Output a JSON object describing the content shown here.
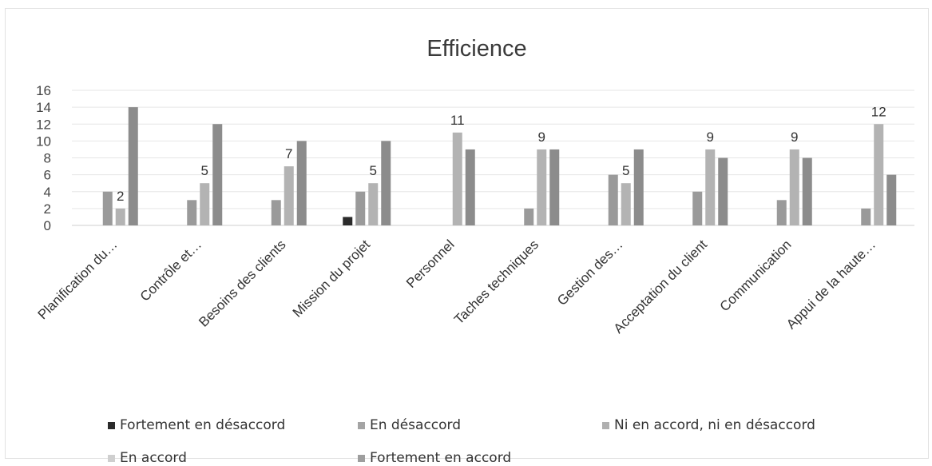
{
  "chart_data": {
    "type": "bar",
    "title": "Efficience",
    "categories": [
      "Planification du…",
      "Contrôle et…",
      "Besoins des clients",
      "Mission du projet",
      "Personnel",
      "Taches techniques",
      "Gestion des…",
      "Acceptation du client",
      "Communication",
      "Appui de la haute…"
    ],
    "series": [
      {
        "name": "Fortement en désaccord",
        "color": "#2b2b2b",
        "values": [
          0,
          0,
          0,
          1,
          0,
          0,
          0,
          0,
          0,
          0
        ]
      },
      {
        "name": "En désaccord",
        "color": "#9a9a9a",
        "values": [
          4,
          3,
          3,
          4,
          0,
          2,
          6,
          4,
          3,
          2
        ]
      },
      {
        "name": "Ni en accord, ni en désaccord",
        "color": "#b3b3b3",
        "values": [
          2,
          5,
          7,
          5,
          11,
          9,
          5,
          9,
          9,
          12
        ]
      },
      {
        "name": "Fortement en accord",
        "color": "#8c8c8c",
        "values": [
          14,
          12,
          10,
          10,
          9,
          9,
          9,
          8,
          8,
          6
        ]
      }
    ],
    "data_labels": [
      "2",
      "5",
      "7",
      "5",
      "11",
      "9",
      "5",
      "9",
      "9",
      "12"
    ],
    "y_ticks": [
      "0",
      "2",
      "4",
      "6",
      "8",
      "10",
      "12",
      "14",
      "16"
    ],
    "ylim": [
      0,
      16
    ],
    "grid": true,
    "legend_position": "bottom"
  },
  "legend": [
    {
      "label": "Fortement en désaccord",
      "color": "#2b2b2b"
    },
    {
      "label": "En désaccord",
      "color": "#a4a4a4"
    },
    {
      "label": "Ni en accord, ni en désaccord",
      "color": "#b0b0b0"
    },
    {
      "label": "En accord",
      "color": "#cfcfcf"
    },
    {
      "label": "Fortement en accord",
      "color": "#9e9e9e"
    }
  ]
}
